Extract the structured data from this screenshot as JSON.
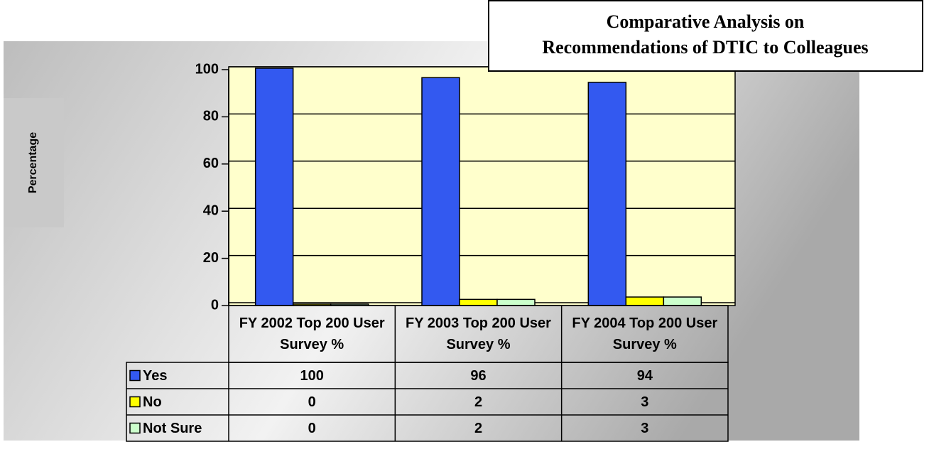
{
  "chart_data": {
    "type": "bar",
    "title": "Comparative Analysis on",
    "subtitle": "Recommendations of DTIC to Colleagues",
    "y_label": "Percentage",
    "categories": [
      "FY 2002 Top 200 User Survey %",
      "FY 2003 Top 200 User Survey %",
      "FY 2004 Top 200 User Survey %"
    ],
    "series": [
      {
        "name": "Yes",
        "color": "#3359f0",
        "values": [
          100,
          96,
          94
        ]
      },
      {
        "name": "No",
        "color": "#ffff00",
        "values": [
          0,
          2,
          3
        ]
      },
      {
        "name": "Not Sure",
        "color": "#ccffcc",
        "values": [
          0,
          2,
          3
        ]
      }
    ],
    "ylim": [
      0,
      100
    ],
    "yticks": [
      0,
      20,
      40,
      60,
      80,
      100
    ],
    "grid": true,
    "plot_background": "#ffffcc"
  }
}
